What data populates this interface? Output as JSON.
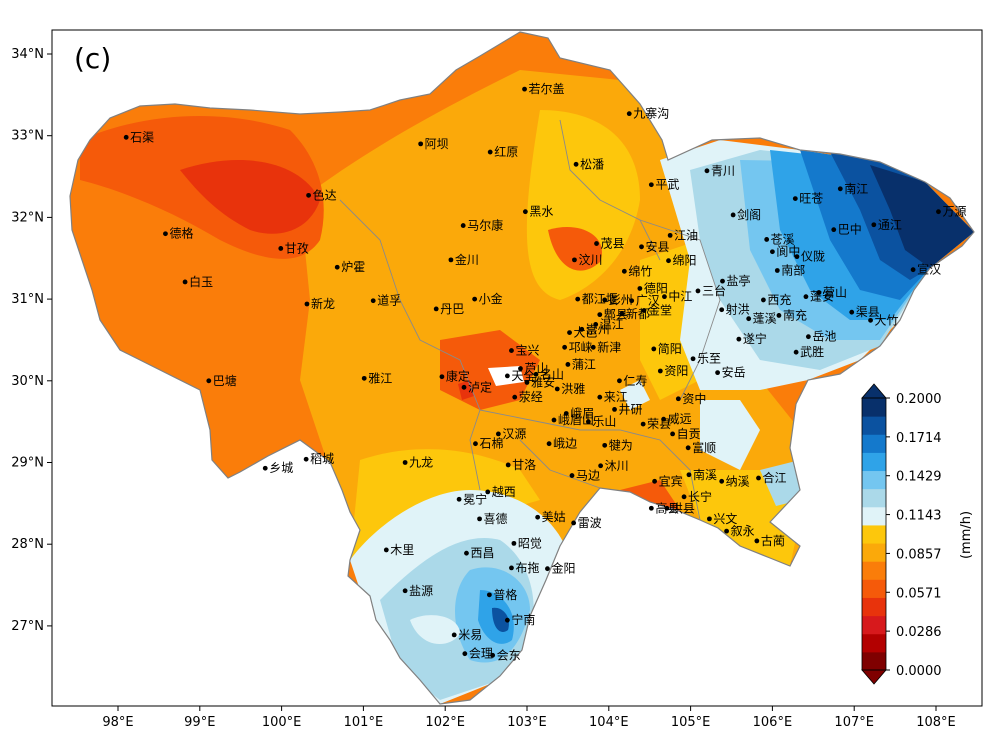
{
  "panel_label": "(c)",
  "colorbar": {
    "unit": "(mm/h)",
    "tick_labels": [
      "0.2000",
      "0.1714",
      "0.1429",
      "0.1143",
      "0.0857",
      "0.0571",
      "0.0286",
      "0.0000"
    ],
    "levels": [
      0.0,
      0.0143,
      0.0286,
      0.0429,
      0.0571,
      0.0714,
      0.0857,
      0.1,
      0.1143,
      0.1286,
      0.1429,
      0.1571,
      0.1714,
      0.1857,
      0.2
    ],
    "colors": [
      "#7f0000",
      "#b30000",
      "#d7191c",
      "#e8330c",
      "#f55a0a",
      "#fa7d0a",
      "#fba90a",
      "#fdc70c",
      "#e0f3f8",
      "#abd9e9",
      "#74c6f0",
      "#2fa3e8",
      "#1479cc",
      "#0b52a0",
      "#08306b"
    ]
  },
  "axes": {
    "lon_labels": [
      "98°E",
      "99°E",
      "100°E",
      "101°E",
      "102°E",
      "103°E",
      "104°E",
      "105°E",
      "106°E",
      "107°E",
      "108°E"
    ],
    "lat_labels": [
      "34°N",
      "33°N",
      "32°N",
      "31°N",
      "30°N",
      "29°N",
      "28°N",
      "27°N"
    ]
  },
  "cities": [
    {
      "name": "若尔盖",
      "lon": 102.97,
      "lat": 33.57
    },
    {
      "name": "九寨沟",
      "lon": 104.25,
      "lat": 33.27
    },
    {
      "name": "石渠",
      "lon": 98.1,
      "lat": 32.98
    },
    {
      "name": "阿坝",
      "lon": 101.7,
      "lat": 32.9
    },
    {
      "name": "红原",
      "lon": 102.55,
      "lat": 32.8
    },
    {
      "name": "松潘",
      "lon": 103.6,
      "lat": 32.65
    },
    {
      "name": "青川",
      "lon": 105.2,
      "lat": 32.57
    },
    {
      "name": "平武",
      "lon": 104.52,
      "lat": 32.4
    },
    {
      "name": "色达",
      "lon": 100.33,
      "lat": 32.27
    },
    {
      "name": "南江",
      "lon": 106.83,
      "lat": 32.35
    },
    {
      "name": "旺苍",
      "lon": 106.28,
      "lat": 32.23
    },
    {
      "name": "万源",
      "lon": 108.03,
      "lat": 32.07
    },
    {
      "name": "黑水",
      "lon": 102.98,
      "lat": 32.07
    },
    {
      "name": "剑阁",
      "lon": 105.52,
      "lat": 32.03
    },
    {
      "name": "马尔康",
      "lon": 102.22,
      "lat": 31.9
    },
    {
      "name": "通江",
      "lon": 107.24,
      "lat": 31.91
    },
    {
      "name": "苍溪",
      "lon": 105.93,
      "lat": 31.73
    },
    {
      "name": "德格",
      "lon": 98.58,
      "lat": 31.8
    },
    {
      "name": "江油",
      "lon": 104.75,
      "lat": 31.78
    },
    {
      "name": "巴中",
      "lon": 106.75,
      "lat": 31.85
    },
    {
      "name": "茂县",
      "lon": 103.85,
      "lat": 31.68
    },
    {
      "name": "安县",
      "lon": 104.4,
      "lat": 31.64
    },
    {
      "name": "阆中",
      "lon": 106.0,
      "lat": 31.58
    },
    {
      "name": "仪陇",
      "lon": 106.3,
      "lat": 31.52
    },
    {
      "name": "甘孜",
      "lon": 99.99,
      "lat": 31.62
    },
    {
      "name": "金川",
      "lon": 102.07,
      "lat": 31.48
    },
    {
      "name": "汶川",
      "lon": 103.58,
      "lat": 31.48
    },
    {
      "name": "绵竹",
      "lon": 104.19,
      "lat": 31.34
    },
    {
      "name": "绵阳",
      "lon": 104.73,
      "lat": 31.47
    },
    {
      "name": "炉霍",
      "lon": 100.68,
      "lat": 31.39
    },
    {
      "name": "宣汉",
      "lon": 107.72,
      "lat": 31.36
    },
    {
      "name": "蓬安",
      "lon": 106.41,
      "lat": 31.03
    },
    {
      "name": "盐亭",
      "lon": 105.39,
      "lat": 31.22
    },
    {
      "name": "南部",
      "lon": 106.06,
      "lat": 31.35
    },
    {
      "name": "彭州",
      "lon": 103.95,
      "lat": 30.99
    },
    {
      "name": "德阳",
      "lon": 104.38,
      "lat": 31.13
    },
    {
      "name": "三台",
      "lon": 105.09,
      "lat": 31.1
    },
    {
      "name": "白玉",
      "lon": 98.82,
      "lat": 31.21
    },
    {
      "name": "都江堰",
      "lon": 103.62,
      "lat": 31.0
    },
    {
      "name": "广汉",
      "lon": 104.28,
      "lat": 30.98
    },
    {
      "name": "中江",
      "lon": 104.68,
      "lat": 31.03
    },
    {
      "name": "西充",
      "lon": 105.89,
      "lat": 30.99
    },
    {
      "name": "营山",
      "lon": 106.57,
      "lat": 31.08
    },
    {
      "name": "渠县",
      "lon": 106.97,
      "lat": 30.84
    },
    {
      "name": "小金",
      "lon": 102.36,
      "lat": 31.0
    },
    {
      "name": "道孚",
      "lon": 101.12,
      "lat": 30.98
    },
    {
      "name": "新龙",
      "lon": 100.31,
      "lat": 30.94
    },
    {
      "name": "郫县",
      "lon": 103.89,
      "lat": 30.81
    },
    {
      "name": "射洪",
      "lon": 105.38,
      "lat": 30.87
    },
    {
      "name": "南充",
      "lon": 106.08,
      "lat": 30.8
    },
    {
      "name": "蓬溪",
      "lon": 105.71,
      "lat": 30.76
    },
    {
      "name": "大竹",
      "lon": 107.2,
      "lat": 30.74
    },
    {
      "name": "丹巴",
      "lon": 101.89,
      "lat": 30.88
    },
    {
      "name": "金堂",
      "lon": 104.43,
      "lat": 30.86
    },
    {
      "name": "大邑",
      "lon": 103.52,
      "lat": 30.59
    },
    {
      "name": "温江",
      "lon": 103.84,
      "lat": 30.69
    },
    {
      "name": "新都",
      "lon": 104.16,
      "lat": 30.82
    },
    {
      "name": "岳池",
      "lon": 106.44,
      "lat": 30.54
    },
    {
      "name": "宝兴",
      "lon": 102.81,
      "lat": 30.37
    },
    {
      "name": "崇州",
      "lon": 103.67,
      "lat": 30.63
    },
    {
      "name": "邛崃",
      "lon": 103.46,
      "lat": 30.41
    },
    {
      "name": "简阳",
      "lon": 104.55,
      "lat": 30.39
    },
    {
      "name": "遂宁",
      "lon": 105.59,
      "lat": 30.51
    },
    {
      "name": "武胜",
      "lon": 106.29,
      "lat": 30.35
    },
    {
      "name": "芦山",
      "lon": 102.92,
      "lat": 30.15
    },
    {
      "name": "新津",
      "lon": 103.81,
      "lat": 30.41
    },
    {
      "name": "乐至",
      "lon": 105.03,
      "lat": 30.27
    },
    {
      "name": "天全",
      "lon": 102.76,
      "lat": 30.06
    },
    {
      "name": "名山",
      "lon": 103.11,
      "lat": 30.08
    },
    {
      "name": "蒲江",
      "lon": 103.5,
      "lat": 30.2
    },
    {
      "name": "仁寿",
      "lon": 104.13,
      "lat": 30.0
    },
    {
      "name": "资阳",
      "lon": 104.63,
      "lat": 30.12
    },
    {
      "name": "安岳",
      "lon": 105.33,
      "lat": 30.1
    },
    {
      "name": "巴塘",
      "lon": 99.11,
      "lat": 30.0
    },
    {
      "name": "雅江",
      "lon": 101.01,
      "lat": 30.03
    },
    {
      "name": "康定",
      "lon": 101.96,
      "lat": 30.05
    },
    {
      "name": "雅安",
      "lon": 103.0,
      "lat": 29.98
    },
    {
      "name": "洪雅",
      "lon": 103.37,
      "lat": 29.9
    },
    {
      "name": "泸定",
      "lon": 102.23,
      "lat": 29.92
    },
    {
      "name": "来江",
      "lon": 103.89,
      "lat": 29.8
    },
    {
      "name": "资中",
      "lon": 104.85,
      "lat": 29.78
    },
    {
      "name": "荥经",
      "lon": 102.85,
      "lat": 29.8
    },
    {
      "name": "峨眉",
      "lon": 103.48,
      "lat": 29.6
    },
    {
      "name": "井研",
      "lon": 104.07,
      "lat": 29.65
    },
    {
      "name": "威远",
      "lon": 104.67,
      "lat": 29.53
    },
    {
      "name": "汉源",
      "lon": 102.65,
      "lat": 29.35
    },
    {
      "name": "峨眉山",
      "lon": 103.33,
      "lat": 29.52
    },
    {
      "name": "乐山",
      "lon": 103.75,
      "lat": 29.5
    },
    {
      "name": "荣县",
      "lon": 104.42,
      "lat": 29.47
    },
    {
      "name": "自贡",
      "lon": 104.78,
      "lat": 29.35
    },
    {
      "name": "石棉",
      "lon": 102.37,
      "lat": 29.23
    },
    {
      "name": "峨边",
      "lon": 103.27,
      "lat": 29.23
    },
    {
      "name": "犍为",
      "lon": 103.95,
      "lat": 29.21
    },
    {
      "name": "富顺",
      "lon": 104.97,
      "lat": 29.18
    },
    {
      "name": "乡城",
      "lon": 99.8,
      "lat": 28.93
    },
    {
      "name": "稻城",
      "lon": 100.3,
      "lat": 29.04
    },
    {
      "name": "九龙",
      "lon": 101.51,
      "lat": 29.0
    },
    {
      "name": "甘洛",
      "lon": 102.77,
      "lat": 28.97
    },
    {
      "name": "马边",
      "lon": 103.55,
      "lat": 28.84
    },
    {
      "name": "沐川",
      "lon": 103.9,
      "lat": 28.96
    },
    {
      "name": "宜宾",
      "lon": 104.56,
      "lat": 28.77
    },
    {
      "name": "南溪",
      "lon": 104.98,
      "lat": 28.85
    },
    {
      "name": "纳溪",
      "lon": 105.38,
      "lat": 28.77
    },
    {
      "name": "合江",
      "lon": 105.83,
      "lat": 28.81
    },
    {
      "name": "冕宁",
      "lon": 102.17,
      "lat": 28.55
    },
    {
      "name": "越西",
      "lon": 102.52,
      "lat": 28.64
    },
    {
      "name": "长宁",
      "lon": 104.92,
      "lat": 28.58
    },
    {
      "name": "高县",
      "lon": 104.52,
      "lat": 28.44
    },
    {
      "name": "美姑",
      "lon": 103.13,
      "lat": 28.33
    },
    {
      "name": "雷波",
      "lon": 103.57,
      "lat": 28.26
    },
    {
      "name": "兴文",
      "lon": 105.23,
      "lat": 28.31
    },
    {
      "name": "珙县",
      "lon": 104.71,
      "lat": 28.44
    },
    {
      "name": "叙永",
      "lon": 105.44,
      "lat": 28.16
    },
    {
      "name": "喜德",
      "lon": 102.42,
      "lat": 28.31
    },
    {
      "name": "古蔺",
      "lon": 105.81,
      "lat": 28.04
    },
    {
      "name": "昭觉",
      "lon": 102.84,
      "lat": 28.01
    },
    {
      "name": "木里",
      "lon": 101.28,
      "lat": 27.93
    },
    {
      "name": "西昌",
      "lon": 102.26,
      "lat": 27.89
    },
    {
      "name": "布拖",
      "lon": 102.81,
      "lat": 27.71
    },
    {
      "name": "金阳",
      "lon": 103.25,
      "lat": 27.7
    },
    {
      "name": "盐源",
      "lon": 101.51,
      "lat": 27.43
    },
    {
      "name": "普格",
      "lon": 102.54,
      "lat": 27.38
    },
    {
      "name": "宁南",
      "lon": 102.76,
      "lat": 27.07
    },
    {
      "name": "米易",
      "lon": 102.11,
      "lat": 26.89
    },
    {
      "name": "会理",
      "lon": 102.24,
      "lat": 26.66
    },
    {
      "name": "会东",
      "lon": 102.58,
      "lat": 26.64
    }
  ]
}
